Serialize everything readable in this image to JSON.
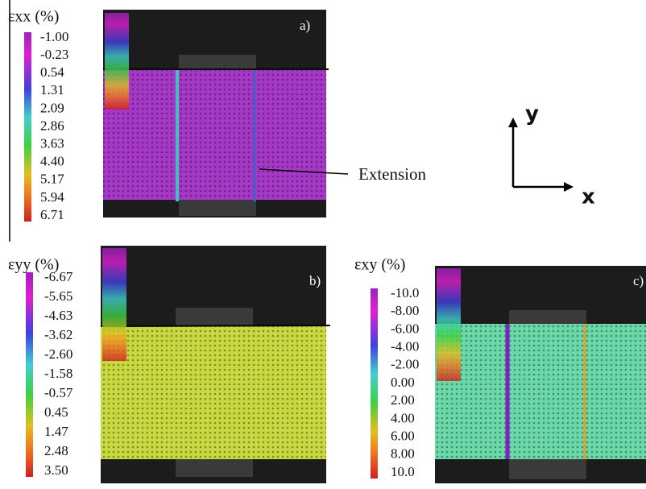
{
  "panels": [
    {
      "title": "εxx (%)",
      "tag": "a)",
      "levels": [
        "-1.00",
        "-0.23",
        "0.54",
        "1.31",
        "2.09",
        "2.86",
        "3.63",
        "4.40",
        "5.17",
        "5.94",
        "6.71"
      ]
    },
    {
      "title": "εyy (%)",
      "tag": "b)",
      "levels": [
        "-6.67",
        "-5.65",
        "-4.63",
        "-3.62",
        "-2.60",
        "-1.58",
        "-0.57",
        "0.45",
        "1.47",
        "2.48",
        "3.50"
      ]
    },
    {
      "title": "εxy (%)",
      "tag": "c)",
      "levels": [
        "-10.0",
        "-8.00",
        "-6.00",
        "-4.00",
        "-2.00",
        "0.00",
        "2.00",
        "4.00",
        "6.00",
        "8.00",
        "10.0"
      ]
    }
  ],
  "annotation": "Extension",
  "axes": {
    "y": "y",
    "x": "x"
  }
}
